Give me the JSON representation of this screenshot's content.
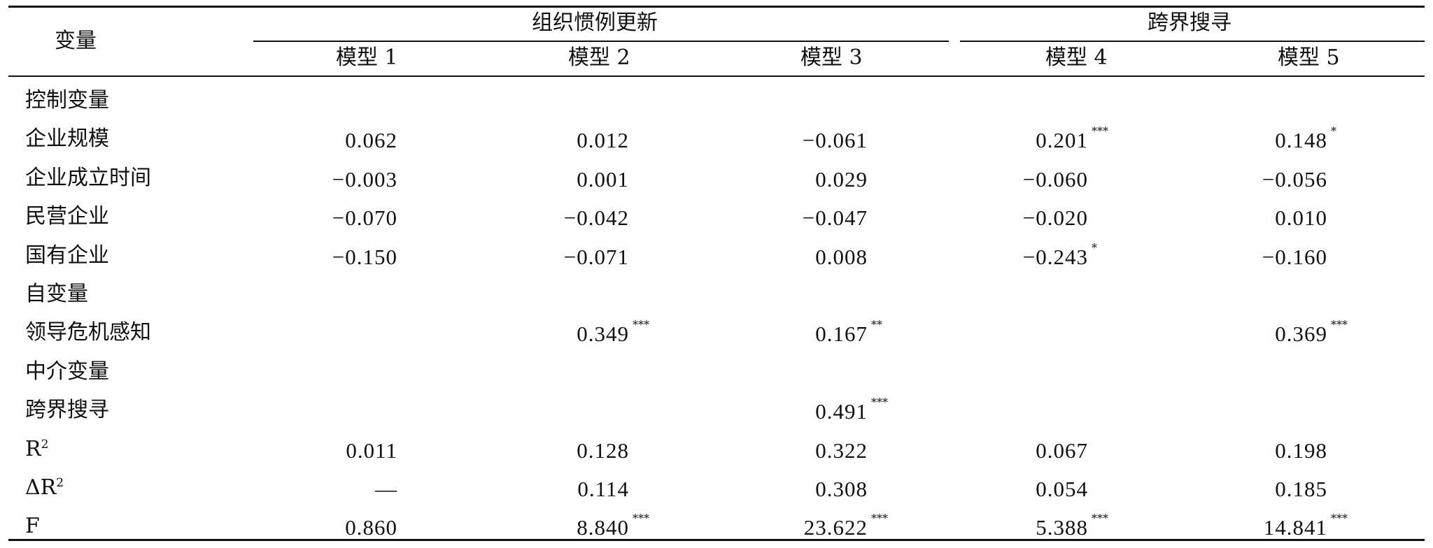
{
  "header": {
    "var_label": "变量",
    "group1": "组织惯例更新",
    "group2": "跨界搜寻",
    "models": [
      "模型 1",
      "模型 2",
      "模型 3",
      "模型 4",
      "模型 5"
    ]
  },
  "rows": [
    {
      "label": "控制变量",
      "cells": [
        "",
        "",
        "",
        "",
        ""
      ]
    },
    {
      "label": "企业规模",
      "cells": [
        {
          "v": "0.062",
          "s": ""
        },
        {
          "v": "0.012",
          "s": ""
        },
        {
          "v": "−0.061",
          "s": ""
        },
        {
          "v": "0.201",
          "s": "***"
        },
        {
          "v": "0.148",
          "s": "*"
        }
      ]
    },
    {
      "label": "企业成立时间",
      "cells": [
        {
          "v": "−0.003",
          "s": ""
        },
        {
          "v": "0.001",
          "s": ""
        },
        {
          "v": "0.029",
          "s": ""
        },
        {
          "v": "−0.060",
          "s": ""
        },
        {
          "v": "−0.056",
          "s": ""
        }
      ]
    },
    {
      "label": "民营企业",
      "cells": [
        {
          "v": "−0.070",
          "s": ""
        },
        {
          "v": "−0.042",
          "s": ""
        },
        {
          "v": "−0.047",
          "s": ""
        },
        {
          "v": "−0.020",
          "s": ""
        },
        {
          "v": "0.010",
          "s": ""
        }
      ]
    },
    {
      "label": "国有企业",
      "cells": [
        {
          "v": "−0.150",
          "s": ""
        },
        {
          "v": "−0.071",
          "s": ""
        },
        {
          "v": "0.008",
          "s": ""
        },
        {
          "v": "−0.243",
          "s": "*"
        },
        {
          "v": "−0.160",
          "s": ""
        }
      ]
    },
    {
      "label": "自变量",
      "cells": [
        "",
        "",
        "",
        "",
        ""
      ]
    },
    {
      "label": "领导危机感知",
      "cells": [
        {
          "v": "",
          "s": ""
        },
        {
          "v": "0.349",
          "s": "***"
        },
        {
          "v": "0.167",
          "s": "**"
        },
        {
          "v": "",
          "s": ""
        },
        {
          "v": "0.369",
          "s": "***"
        }
      ]
    },
    {
      "label": "中介变量",
      "cells": [
        "",
        "",
        "",
        "",
        ""
      ]
    },
    {
      "label": "跨界搜寻",
      "cells": [
        {
          "v": "",
          "s": ""
        },
        {
          "v": "",
          "s": ""
        },
        {
          "v": "0.491",
          "s": "***"
        },
        {
          "v": "",
          "s": ""
        },
        {
          "v": "",
          "s": ""
        }
      ]
    },
    {
      "label": "R",
      "label_sup": "2",
      "cells": [
        {
          "v": "0.011",
          "s": ""
        },
        {
          "v": "0.128",
          "s": ""
        },
        {
          "v": "0.322",
          "s": ""
        },
        {
          "v": "0.067",
          "s": ""
        },
        {
          "v": "0.198",
          "s": ""
        }
      ]
    },
    {
      "label": "ΔR",
      "label_sup": "2",
      "cells": [
        {
          "v": "—",
          "s": ""
        },
        {
          "v": "0.114",
          "s": ""
        },
        {
          "v": "0.308",
          "s": ""
        },
        {
          "v": "0.054",
          "s": ""
        },
        {
          "v": "0.185",
          "s": ""
        }
      ]
    },
    {
      "label": "F",
      "cells": [
        {
          "v": "0.860",
          "s": ""
        },
        {
          "v": "8.840",
          "s": "***"
        },
        {
          "v": "23.622",
          "s": "***"
        },
        {
          "v": "5.388",
          "s": "***"
        },
        {
          "v": "14.841",
          "s": "***"
        }
      ]
    }
  ]
}
